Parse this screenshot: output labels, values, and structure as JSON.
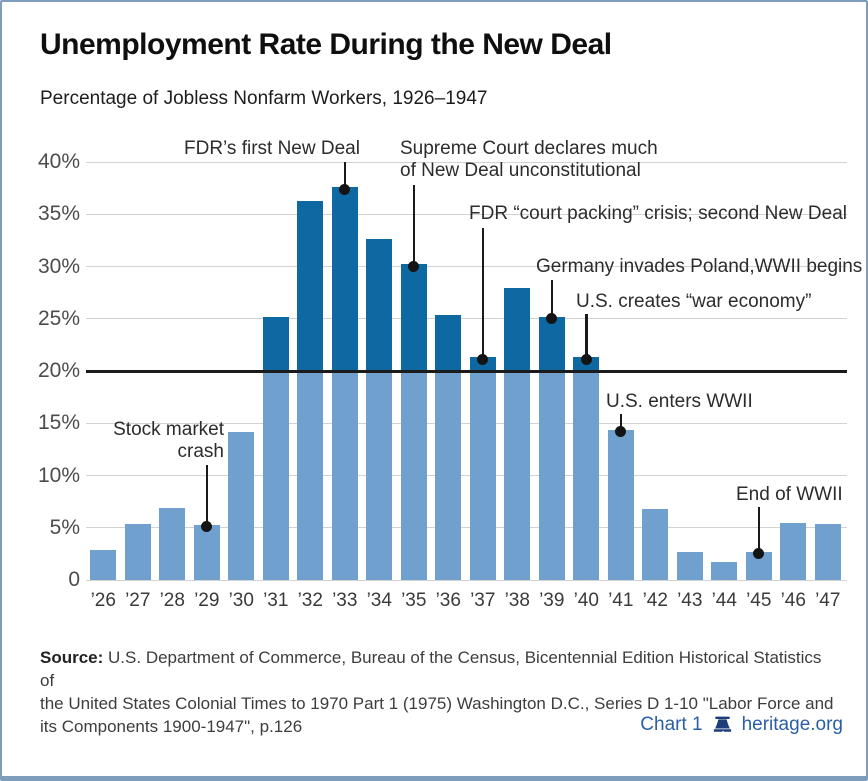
{
  "chart_data": {
    "type": "bar",
    "title": "Unemployment Rate During the New Deal",
    "subtitle": "Percentage of Jobless Nonfarm Workers, 1926–1947",
    "categories": [
      "’26",
      "’27",
      "’28",
      "’29",
      "’30",
      "’31",
      "’32",
      "’33",
      "’34",
      "’35",
      "’36",
      "’37",
      "’38",
      "’39",
      "’40",
      "’41",
      "’42",
      "’43",
      "’44",
      "’45",
      "’46",
      "’47"
    ],
    "values": [
      2.9,
      5.4,
      6.9,
      5.3,
      14.2,
      25.2,
      36.3,
      37.6,
      32.6,
      30.2,
      25.4,
      21.3,
      27.9,
      25.2,
      21.3,
      14.4,
      6.8,
      2.7,
      1.7,
      2.7,
      5.5,
      5.4
    ],
    "ylim": [
      0,
      40
    ],
    "ytick_step": 5,
    "ytick_labels": [
      "0",
      "5%",
      "10%",
      "15%",
      "20%",
      "25%",
      "30%",
      "35%",
      "40%"
    ],
    "grid": true,
    "legend": "none",
    "reference_line": {
      "value": 20,
      "color": "#1b1b1b"
    },
    "colors": {
      "bar_below_ref": "#6FA0CE",
      "bar_above_ref": "#0E69A2"
    },
    "annotations": [
      {
        "id": "stock-market-crash",
        "lines": [
          "Stock market",
          "crash"
        ],
        "target_year": "’29",
        "target_value": 5.3
      },
      {
        "id": "fdr-first-new-deal",
        "lines": [
          "FDR’s first New Deal"
        ],
        "target_year": "’33",
        "target_value": 37.6
      },
      {
        "id": "supreme-court",
        "lines": [
          "Supreme Court declares much",
          "of New Deal unconstitutional"
        ],
        "target_year": "’35",
        "target_value": 30.2
      },
      {
        "id": "court-packing",
        "lines": [
          "FDR “court packing” crisis; second New Deal"
        ],
        "target_year": "’37",
        "target_value": 21.3
      },
      {
        "id": "germany-invades",
        "lines": [
          "Germany invades Poland,WWII begins"
        ],
        "target_year": "’39",
        "target_value": 25.2
      },
      {
        "id": "war-economy",
        "lines": [
          "U.S. creates “war economy”"
        ],
        "target_year": "’40",
        "target_value": 21.3
      },
      {
        "id": "us-enters-wwii",
        "lines": [
          "U.S. enters WWII"
        ],
        "target_year": "’41",
        "target_value": 14.4
      },
      {
        "id": "end-of-wwii",
        "lines": [
          "End of WWII"
        ],
        "target_year": "’45",
        "target_value": 2.7
      }
    ]
  },
  "source": {
    "label": "Source:",
    "lines": [
      "U.S. Department of Commerce, Bureau of the Census, Bicentennial Edition Historical Statistics of",
      "the United States Colonial Times to 1970 Part 1 (1975) Washington D.C., Series D 1-10 \"Labor Force and",
      "its Components 1900-1947\", p.126"
    ]
  },
  "footer": {
    "chart_label": "Chart 1",
    "brand": "heritage.org"
  }
}
